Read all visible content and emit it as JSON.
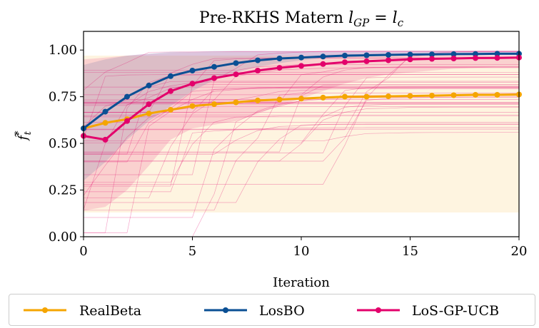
{
  "chart_data": {
    "type": "line",
    "title": "Pre-RKHS Matern l_GP = l_c",
    "title_parts": {
      "prefix": "Pre-RKHS Matern ",
      "l": "l",
      "sub_gp": "GP",
      "eq": " = ",
      "sub_c": "c"
    },
    "xlabel": "Iteration",
    "ylabel": "f̂*_t",
    "ylabel_parts": {
      "f": "f̂",
      "sup": "*",
      "sub": "t"
    },
    "xlim": [
      0,
      20
    ],
    "ylim": [
      0,
      1.1
    ],
    "xticks": [
      0,
      5,
      10,
      15,
      20
    ],
    "xtick_labels": [
      "0",
      "5",
      "10",
      "15",
      "20"
    ],
    "yticks": [
      0,
      0.25,
      0.5,
      0.75,
      1.0
    ],
    "ytick_labels": [
      "0.00",
      "0.25",
      "0.50",
      "0.75",
      "1.00"
    ],
    "grid": false,
    "legend_position": "bottom",
    "x": [
      0,
      1,
      2,
      3,
      4,
      5,
      6,
      7,
      8,
      9,
      10,
      11,
      12,
      13,
      14,
      15,
      16,
      17,
      18,
      19,
      20
    ],
    "series": [
      {
        "name": "RealBeta",
        "color": "#f5a500",
        "values": [
          0.58,
          0.61,
          0.63,
          0.66,
          0.68,
          0.7,
          0.71,
          0.72,
          0.73,
          0.735,
          0.74,
          0.745,
          0.75,
          0.75,
          0.752,
          0.754,
          0.756,
          0.758,
          0.76,
          0.76,
          0.762
        ],
        "band_lower": [
          0.13,
          0.13,
          0.13,
          0.13,
          0.13,
          0.13,
          0.13,
          0.13,
          0.13,
          0.13,
          0.13,
          0.13,
          0.13,
          0.13,
          0.13,
          0.13,
          0.13,
          0.13,
          0.13,
          0.13,
          0.13
        ],
        "band_upper": [
          0.97,
          0.97,
          0.97,
          0.97,
          0.97,
          0.97,
          0.97,
          0.97,
          0.97,
          0.97,
          0.97,
          0.97,
          0.97,
          0.97,
          0.97,
          0.97,
          0.97,
          0.97,
          0.97,
          0.97,
          0.97
        ]
      },
      {
        "name": "LosBO",
        "color": "#0a4f94",
        "values": [
          0.58,
          0.67,
          0.75,
          0.81,
          0.86,
          0.89,
          0.91,
          0.93,
          0.945,
          0.955,
          0.96,
          0.965,
          0.97,
          0.972,
          0.974,
          0.976,
          0.977,
          0.978,
          0.979,
          0.98,
          0.98
        ],
        "band_lower": [
          0.3,
          0.4,
          0.52,
          0.62,
          0.7,
          0.78,
          0.84,
          0.88,
          0.91,
          0.93,
          0.945,
          0.955,
          0.96,
          0.965,
          0.97,
          0.972,
          0.974,
          0.975,
          0.976,
          0.977,
          0.978
        ],
        "band_upper": [
          0.92,
          0.95,
          0.97,
          0.98,
          0.99,
          0.99,
          0.995,
          0.995,
          0.995,
          0.995,
          0.995,
          0.995,
          0.995,
          0.995,
          0.995,
          0.995,
          0.995,
          0.995,
          0.995,
          0.995,
          0.995
        ]
      },
      {
        "name": "LoS-GP-UCB",
        "color": "#e3006b",
        "values": [
          0.54,
          0.52,
          0.62,
          0.71,
          0.78,
          0.82,
          0.85,
          0.87,
          0.89,
          0.905,
          0.915,
          0.925,
          0.935,
          0.94,
          0.945,
          0.95,
          0.953,
          0.955,
          0.957,
          0.958,
          0.96
        ],
        "band_lower": [
          0.14,
          0.16,
          0.25,
          0.38,
          0.52,
          0.58,
          0.6,
          0.62,
          0.66,
          0.7,
          0.74,
          0.78,
          0.82,
          0.85,
          0.87,
          0.88,
          0.89,
          0.9,
          0.905,
          0.91,
          0.91
        ],
        "band_upper": [
          0.95,
          0.96,
          0.97,
          0.98,
          0.985,
          0.99,
          0.99,
          0.995,
          0.995,
          0.995,
          0.995,
          0.995,
          0.995,
          0.995,
          0.995,
          0.995,
          0.995,
          0.995,
          0.995,
          0.995,
          0.995
        ]
      }
    ],
    "background_runs_color": "#e3006b"
  }
}
